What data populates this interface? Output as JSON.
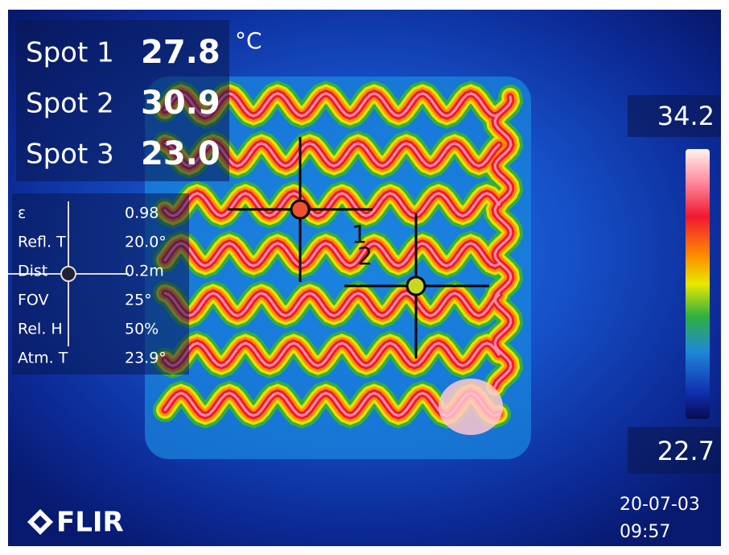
{
  "spots": [
    {
      "label": "Spot 1",
      "value": "27.8"
    },
    {
      "label": "Spot 2",
      "value": "30.9"
    },
    {
      "label": "Spot 3",
      "value": "23.0"
    }
  ],
  "unit": "°C",
  "parameters": [
    {
      "label": "ε",
      "value": "0.98"
    },
    {
      "label": "Refl. T",
      "value": "20.0°"
    },
    {
      "label": "Dist",
      "value": "0.2m"
    },
    {
      "label": "FOV",
      "value": "25°"
    },
    {
      "label": "Rel. H",
      "value": "50%"
    },
    {
      "label": "Atm. T",
      "value": "23.9°"
    }
  ],
  "scale": {
    "max": "34.2",
    "min": "22.7"
  },
  "date": "20-07-03",
  "time": "09:57",
  "markers": [
    "1",
    "2"
  ],
  "logo": "FLIR"
}
